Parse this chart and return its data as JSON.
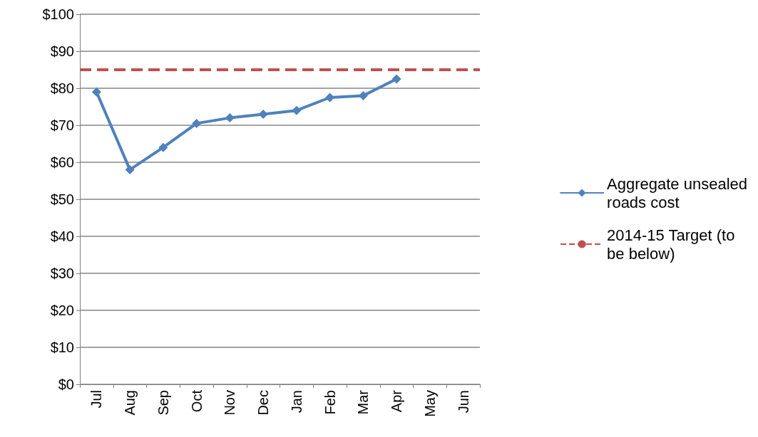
{
  "chart_data": {
    "type": "line",
    "categories": [
      "Jul",
      "Aug",
      "Sep",
      "Oct",
      "Nov",
      "Dec",
      "Jan",
      "Feb",
      "Mar",
      "Apr",
      "May",
      "Jun"
    ],
    "series": [
      {
        "name": "Aggregate unsealed roads cost",
        "color": "#4f81bd",
        "values": [
          79,
          58,
          64,
          70.5,
          72,
          73,
          74,
          77.5,
          78,
          82.5,
          null,
          null
        ]
      }
    ],
    "ylim": [
      0,
      100
    ],
    "yticks": [
      {
        "value": 0,
        "label": "$0"
      },
      {
        "value": 10,
        "label": "$10"
      },
      {
        "value": 20,
        "label": "$20"
      },
      {
        "value": 30,
        "label": "$30"
      },
      {
        "value": 40,
        "label": "$40"
      },
      {
        "value": 50,
        "label": "$50"
      },
      {
        "value": 60,
        "label": "$60"
      },
      {
        "value": 70,
        "label": "$70"
      },
      {
        "value": 80,
        "label": "$80"
      },
      {
        "value": 90,
        "label": "$90"
      },
      {
        "value": 100,
        "label": "$100"
      }
    ],
    "ref_lines": [
      {
        "axis": "y",
        "value": 85,
        "label": "2014-15 Target (to be below)",
        "color": "#c0504d",
        "line_style": "dashed"
      }
    ],
    "grid": "y",
    "legend": "right",
    "marker": "diamond",
    "line_style": "solid"
  }
}
